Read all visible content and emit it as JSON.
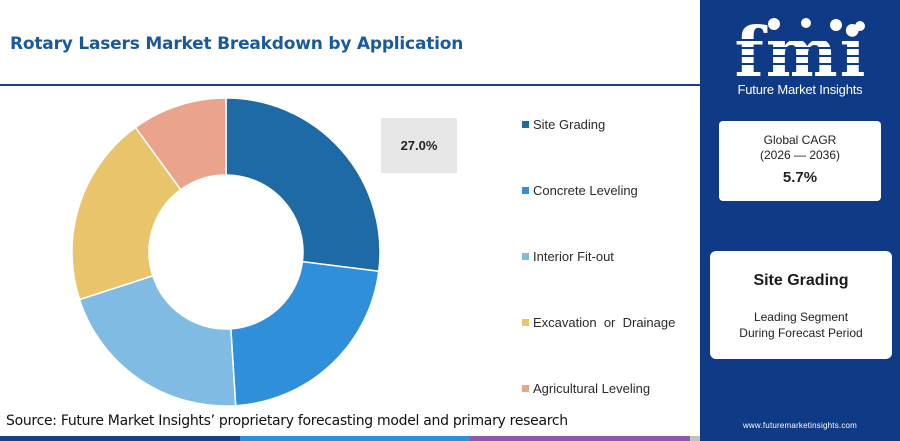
{
  "header": {
    "title": "Rotary Lasers Market Breakdown by Application"
  },
  "chart_data": {
    "type": "pie",
    "title": "Rotary Lasers Market Breakdown by Application",
    "style": "donut",
    "categories": [
      "Site Grading",
      "Concrete Leveling",
      "Interior Fit-out",
      "Excavation  or  Drainage",
      "Agricultural Leveling"
    ],
    "values": [
      27.0,
      22.0,
      21.0,
      20.0,
      10.0
    ],
    "colors": [
      "#1d6aa5",
      "#2f8fd8",
      "#7fbbe3",
      "#eac46a",
      "#eba48c"
    ],
    "highlighted_label": "27.0%",
    "legend_position": "right"
  },
  "legend": {
    "items": [
      {
        "label": "Site Grading",
        "color": "#1d6aa5"
      },
      {
        "label": "Concrete Leveling",
        "color": "#2f8fd8"
      },
      {
        "label": "Interior Fit-out",
        "color": "#7fbbe3"
      },
      {
        "label": "Excavation  or  Drainage",
        "color": "#eac46a"
      },
      {
        "label": "Agricultural Leveling",
        "color": "#eba48c"
      }
    ]
  },
  "value_box": {
    "label": "27.0%"
  },
  "footer": {
    "source": "Source: Future Market Insights’ proprietary forecasting model and primary research",
    "rule_colors": [
      "#1c3f8a",
      "#2f8fd8",
      "#8b5aa8",
      "#c0c0c0"
    ]
  },
  "sidebar": {
    "brand": "fmi",
    "tagline": "Future Market Insights",
    "cagr_label": "Global CAGR",
    "cagr_period": "(2026 — 2036)",
    "cagr_value": "5.7%",
    "segment_name": "Site Grading",
    "segment_desc_line1": "Leading Segment",
    "segment_desc_line2": "During Forecast Period",
    "website": "www.futuremarketinsights.com",
    "background_color": "#0e3a86"
  }
}
